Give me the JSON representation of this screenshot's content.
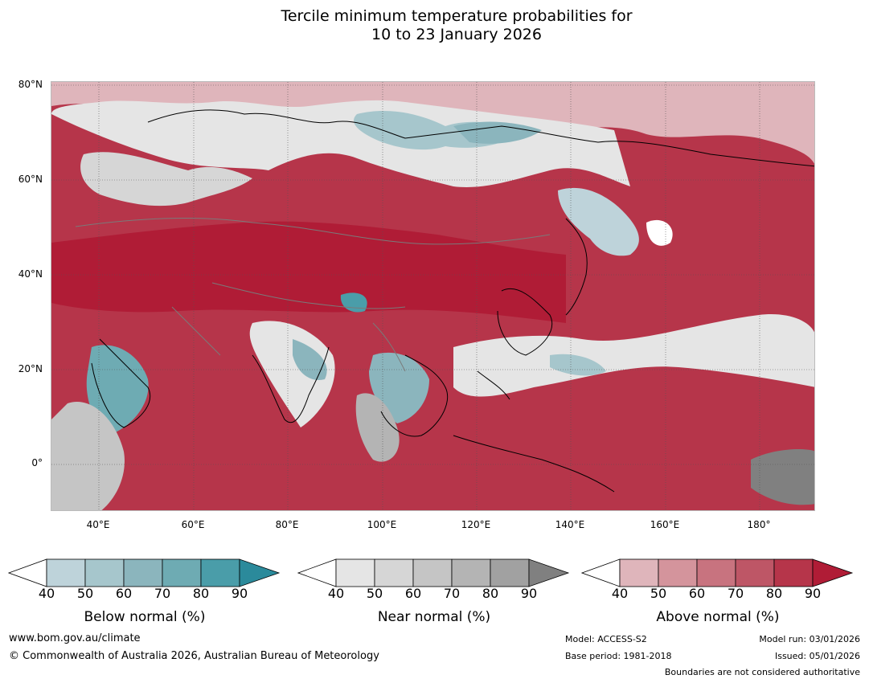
{
  "title": {
    "line1": "Tercile minimum temperature probabilities for",
    "line2": "10 to 23 January 2026"
  },
  "map": {
    "name": "Asia and western Pacific tercile probability map",
    "lat_labels": [
      "80°N",
      "60°N",
      "40°N",
      "20°N",
      "0°"
    ],
    "lon_labels": [
      "40°E",
      "60°E",
      "80°E",
      "100°E",
      "120°E",
      "140°E",
      "160°E",
      "180°"
    ]
  },
  "legends": {
    "below": {
      "label": "Below normal (%)",
      "ticks": [
        "40",
        "50",
        "60",
        "70",
        "80",
        "90"
      ],
      "colors": [
        "#ffffff",
        "#bed3da",
        "#a6c6cc",
        "#8bb5bd",
        "#6eabb3",
        "#4a9da9",
        "#2b8a9b"
      ]
    },
    "near": {
      "label": "Near normal (%)",
      "ticks": [
        "40",
        "50",
        "60",
        "70",
        "80",
        "90"
      ],
      "colors": [
        "#ffffff",
        "#e5e5e5",
        "#d6d6d6",
        "#c5c5c5",
        "#b4b4b4",
        "#a1a1a1",
        "#808080"
      ]
    },
    "above": {
      "label": "Above normal (%)",
      "ticks": [
        "40",
        "50",
        "60",
        "70",
        "80",
        "90"
      ],
      "colors": [
        "#ffffff",
        "#dfb5bb",
        "#d4949c",
        "#c8737f",
        "#be5666",
        "#b6354a",
        "#b01c36"
      ]
    }
  },
  "footer": {
    "website": "www.bom.gov.au/climate",
    "copyright": "© Commonwealth of Australia 2026, Australian Bureau of Meteorology",
    "model": "Model: ACCESS-S2",
    "base_period": "Base period: 1981-2018",
    "model_run": "Model run: 03/01/2026",
    "issued": "Issued: 05/01/2026",
    "disclaimer": "Boundaries are not considered authoritative"
  }
}
